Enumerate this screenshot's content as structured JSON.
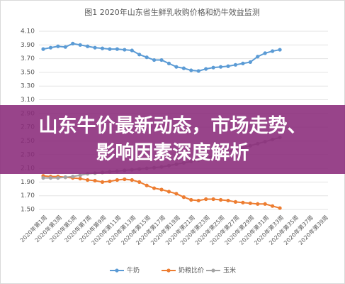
{
  "chart_data": {
    "type": "line",
    "title": "图1 2020年山东省生鲜乳收购价格和奶牛效益监测",
    "categories": [
      "2020年第1周",
      null,
      "2020年第3周",
      null,
      "2020年第5周",
      null,
      "2020年第7周",
      null,
      "2020年第9周",
      null,
      "2020年第11周",
      null,
      "2020年第13周",
      null,
      "2020年第15周",
      null,
      "2020年第17周",
      null,
      "2020年第19周",
      null,
      "2020年第21周",
      null,
      "2020年第23周",
      null,
      "2020年第25周",
      null,
      "2020年第27周",
      null,
      "2020年第29周",
      null,
      "2020年第31周",
      null,
      "2020年第33周",
      null,
      "2020年第35周",
      null,
      "2020年第37周",
      null,
      "2020年第39周"
    ],
    "series": [
      {
        "name": "牛奶",
        "color": "#5b9bd5",
        "values": [
          3.84,
          3.86,
          3.88,
          3.87,
          3.92,
          3.9,
          3.88,
          3.86,
          3.85,
          3.84,
          3.84,
          3.83,
          3.82,
          3.76,
          3.72,
          3.68,
          3.68,
          3.63,
          3.58,
          3.56,
          3.53,
          3.52,
          3.55,
          3.57,
          3.58,
          3.59,
          3.61,
          3.63,
          3.65,
          3.73,
          3.78,
          3.81,
          3.83,
          null,
          null,
          null,
          null,
          null,
          null
        ]
      },
      {
        "name": "奶粮比价",
        "color": "#ed7d31",
        "values": [
          1.99,
          1.98,
          1.98,
          1.97,
          1.96,
          1.95,
          1.93,
          1.92,
          1.9,
          1.91,
          1.93,
          1.94,
          1.93,
          1.9,
          1.85,
          1.81,
          1.79,
          1.76,
          1.73,
          1.68,
          1.64,
          1.63,
          1.65,
          1.65,
          1.64,
          1.63,
          1.61,
          1.6,
          1.59,
          1.58,
          1.58,
          1.55,
          1.52,
          null,
          null,
          null,
          null,
          null,
          null
        ]
      },
      {
        "name": "玉米",
        "color": "#a5a5a5",
        "values": [
          1.96,
          1.96,
          1.96,
          1.97,
          1.98,
          2.0,
          2.02,
          2.03,
          2.04,
          2.05,
          2.06,
          2.07,
          2.08,
          2.09,
          2.1,
          2.11,
          2.12,
          2.14,
          2.16,
          2.18,
          2.2,
          2.22,
          2.25,
          2.28,
          2.31,
          2.34,
          2.37,
          2.4,
          2.43,
          2.46,
          2.49,
          2.52,
          2.55,
          null,
          null,
          null,
          null,
          null,
          null
        ]
      }
    ],
    "ylim": [
      1.5,
      4.1
    ],
    "yticks": [
      {
        "value": 1.5,
        "label": "1.50"
      },
      {
        "value": 1.7,
        "label": "1.70"
      },
      {
        "value": 1.9,
        "label": "1.90"
      },
      {
        "value": 2.1,
        "label": "2.10"
      },
      {
        "value": 2.3,
        "label": "2.30"
      },
      {
        "value": 2.5,
        "label": "2.50"
      },
      {
        "value": 2.7,
        "label": "2.70"
      },
      {
        "value": 2.9,
        "label": "2.90"
      },
      {
        "value": 3.1,
        "label": "3.10"
      },
      {
        "value": 3.3,
        "label": "3.30"
      },
      {
        "value": 3.5,
        "label": "3.50"
      },
      {
        "value": 3.7,
        "label": "3.70"
      },
      {
        "value": 3.9,
        "label": "3.90"
      },
      {
        "value": 4.1,
        "label": "4.10"
      }
    ],
    "grid": true,
    "legend": "bottom"
  },
  "banner": {
    "headline": "山东牛价最新动态，市场走势、影响因素深度解析"
  }
}
